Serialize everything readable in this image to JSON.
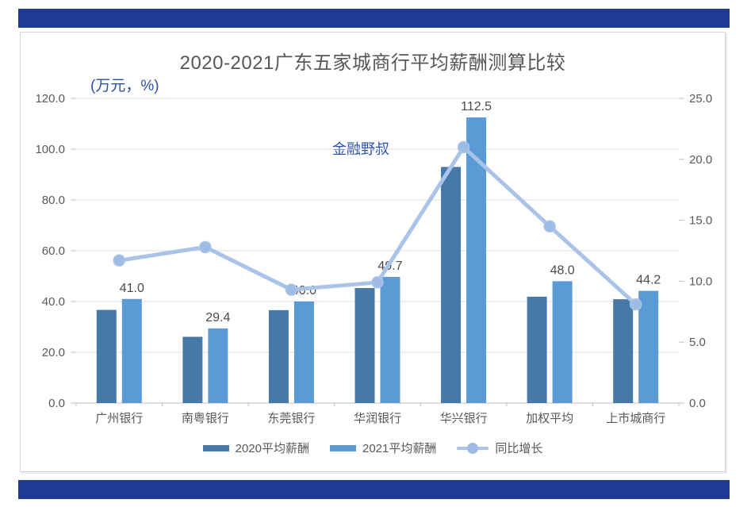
{
  "page": {
    "band_color": "#1e3a97",
    "frame_border_color": "#d4d4d4",
    "accent_text_color": "#2b50a8"
  },
  "chart_data": {
    "type": "combo-bar-line",
    "title": "2020-2021广东五家城商行平均薪酬测算比较",
    "units_label": "(万元，%)",
    "watermark": "金融野叔",
    "categories": [
      "广州银行",
      "南粤银行",
      "东莞银行",
      "华润银行",
      "华兴银行",
      "加权平均",
      "上市城商行"
    ],
    "series": [
      {
        "name": "2020平均薪酬",
        "type": "bar",
        "axis": "left",
        "color": "#4679a8",
        "values": [
          36.7,
          26.1,
          36.6,
          45.3,
          93.0,
          41.9,
          40.9
        ]
      },
      {
        "name": "2021平均薪酬",
        "type": "bar",
        "axis": "left",
        "color": "#5b9bd5",
        "values": [
          41.0,
          29.4,
          40.0,
          49.7,
          112.5,
          48.0,
          44.2
        ],
        "data_labels": [
          "41.0",
          "29.4",
          "40.0",
          "49.7",
          "112.5",
          "48.0",
          "44.2"
        ]
      },
      {
        "name": "同比增长",
        "type": "line",
        "axis": "right",
        "color": "#a9c4e8",
        "marker_color": "#9dbce4",
        "values": [
          11.7,
          12.8,
          9.3,
          9.9,
          21.0,
          14.5,
          8.1
        ]
      }
    ],
    "left_axis": {
      "tick_labels": [
        "120.0",
        "100.0",
        "80.0",
        "60.0",
        "40.0",
        "20.0",
        "0.0"
      ],
      "min": 0,
      "max": 120
    },
    "right_axis": {
      "tick_labels": [
        "25.0",
        "20.0",
        "15.0",
        "10.0",
        "5.0",
        "0.0"
      ],
      "min": 0,
      "max": 25
    },
    "grid": true,
    "legend_position": "bottom",
    "axis_text_color": "#595959",
    "data_label_color": "#4a4a4a",
    "gridline_color": "#dcdcdc",
    "axisline_color": "#bfbfbf"
  }
}
